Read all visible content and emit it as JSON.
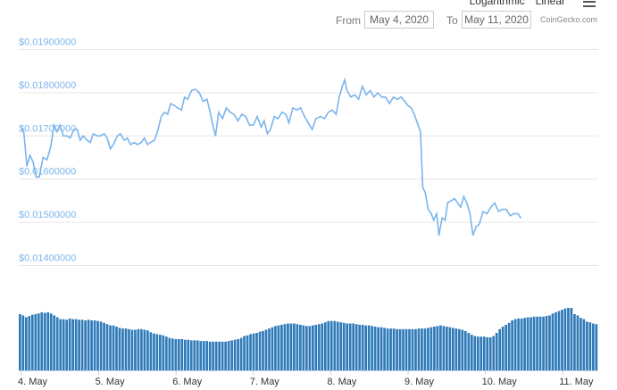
{
  "controls": {
    "scale_options": [
      "Logarithmic",
      "Linear"
    ],
    "from_label": "From",
    "from_value": "May 4, 2020",
    "to_label": "To",
    "to_value": "May 11, 2020",
    "credit": "CoinGecko.com"
  },
  "chart_data": {
    "type": "line",
    "title": "",
    "xlabel": "",
    "ylabel": "",
    "x_ticks": [
      "4. May",
      "5. May",
      "6. May",
      "7. May",
      "8. May",
      "9. May",
      "10. May",
      "11. May"
    ],
    "y_ticks": [
      "$0.01400000",
      "$0.01500000",
      "$0.01600000",
      "$0.01700000",
      "$0.01800000",
      "$0.01900000"
    ],
    "y_tick_values": [
      0.014,
      0.015,
      0.016,
      0.017,
      0.018,
      0.019
    ],
    "ylim": [
      0.0137,
      0.0193
    ],
    "x_range_days": [
      4.0,
      11.72
    ],
    "grid": true,
    "price_series": {
      "name": "Price",
      "color": "#7cb5ec",
      "points": [
        [
          4.0,
          0.0172
        ],
        [
          4.03,
          0.0171
        ],
        [
          4.07,
          0.0163
        ],
        [
          4.11,
          0.01655
        ],
        [
          4.15,
          0.0164
        ],
        [
          4.19,
          0.01605
        ],
        [
          4.23,
          0.01605
        ],
        [
          4.28,
          0.0165
        ],
        [
          4.33,
          0.01645
        ],
        [
          4.38,
          0.01675
        ],
        [
          4.42,
          0.01725
        ],
        [
          4.46,
          0.0171
        ],
        [
          4.5,
          0.01725
        ],
        [
          4.54,
          0.017
        ],
        [
          4.59,
          0.017
        ],
        [
          4.63,
          0.01695
        ],
        [
          4.68,
          0.01715
        ],
        [
          4.72,
          0.01715
        ],
        [
          4.76,
          0.0169
        ],
        [
          4.8,
          0.017
        ],
        [
          4.85,
          0.0169
        ],
        [
          4.89,
          0.01685
        ],
        [
          4.93,
          0.01705
        ],
        [
          4.98,
          0.017
        ],
        [
          5.02,
          0.017
        ],
        [
          5.07,
          0.01705
        ],
        [
          5.11,
          0.01695
        ],
        [
          5.15,
          0.0167
        ],
        [
          5.19,
          0.0168
        ],
        [
          5.24,
          0.017
        ],
        [
          5.28,
          0.01705
        ],
        [
          5.33,
          0.0169
        ],
        [
          5.37,
          0.01695
        ],
        [
          5.41,
          0.0168
        ],
        [
          5.46,
          0.01685
        ],
        [
          5.5,
          0.0168
        ],
        [
          5.55,
          0.01685
        ],
        [
          5.59,
          0.01695
        ],
        [
          5.63,
          0.0168
        ],
        [
          5.67,
          0.01685
        ],
        [
          5.72,
          0.0169
        ],
        [
          5.76,
          0.0171
        ],
        [
          5.81,
          0.01745
        ],
        [
          5.85,
          0.01755
        ],
        [
          5.89,
          0.0175
        ],
        [
          5.93,
          0.01775
        ],
        [
          5.98,
          0.0177
        ],
        [
          6.02,
          0.01765
        ],
        [
          6.07,
          0.0176
        ],
        [
          6.11,
          0.0179
        ],
        [
          6.15,
          0.01785
        ],
        [
          6.2,
          0.01805
        ],
        [
          6.25,
          0.01808
        ],
        [
          6.3,
          0.018
        ],
        [
          6.35,
          0.0178
        ],
        [
          6.4,
          0.01785
        ],
        [
          6.44,
          0.01755
        ],
        [
          6.48,
          0.0172
        ],
        [
          6.51,
          0.017
        ],
        [
          6.55,
          0.01755
        ],
        [
          6.6,
          0.0174
        ],
        [
          6.65,
          0.01765
        ],
        [
          6.7,
          0.01755
        ],
        [
          6.75,
          0.0175
        ],
        [
          6.8,
          0.01735
        ],
        [
          6.85,
          0.0175
        ],
        [
          6.9,
          0.01745
        ],
        [
          6.95,
          0.01725
        ],
        [
          7.0,
          0.01725
        ],
        [
          7.05,
          0.01745
        ],
        [
          7.1,
          0.0172
        ],
        [
          7.14,
          0.01735
        ],
        [
          7.18,
          0.01705
        ],
        [
          7.22,
          0.01715
        ],
        [
          7.27,
          0.01745
        ],
        [
          7.32,
          0.0174
        ],
        [
          7.37,
          0.01755
        ],
        [
          7.42,
          0.0175
        ],
        [
          7.46,
          0.0173
        ],
        [
          7.51,
          0.01765
        ],
        [
          7.56,
          0.0176
        ],
        [
          7.61,
          0.01765
        ],
        [
          7.66,
          0.01745
        ],
        [
          7.71,
          0.0173
        ],
        [
          7.76,
          0.01715
        ],
        [
          7.81,
          0.0174
        ],
        [
          7.87,
          0.01745
        ],
        [
          7.92,
          0.0174
        ],
        [
          7.97,
          0.01755
        ],
        [
          8.02,
          0.0176
        ],
        [
          8.07,
          0.0175
        ],
        [
          8.11,
          0.0179
        ],
        [
          8.15,
          0.01815
        ],
        [
          8.18,
          0.0183
        ],
        [
          8.21,
          0.01805
        ],
        [
          8.26,
          0.0179
        ],
        [
          8.31,
          0.01795
        ],
        [
          8.36,
          0.01785
        ],
        [
          8.41,
          0.01815
        ],
        [
          8.46,
          0.01795
        ],
        [
          8.51,
          0.01805
        ],
        [
          8.56,
          0.0179
        ],
        [
          8.61,
          0.018
        ],
        [
          8.66,
          0.0179
        ],
        [
          8.71,
          0.0179
        ],
        [
          8.76,
          0.01775
        ],
        [
          8.81,
          0.0179
        ],
        [
          8.86,
          0.01785
        ],
        [
          8.91,
          0.0179
        ],
        [
          8.96,
          0.0178
        ],
        [
          9.0,
          0.0177
        ],
        [
          9.04,
          0.01765
        ],
        [
          9.08,
          0.0175
        ],
        [
          9.12,
          0.0173
        ],
        [
          9.16,
          0.0171
        ],
        [
          9.19,
          0.0158
        ],
        [
          9.22,
          0.0157
        ],
        [
          9.26,
          0.0153
        ],
        [
          9.3,
          0.0152
        ],
        [
          9.33,
          0.01505
        ],
        [
          9.37,
          0.0152
        ],
        [
          9.4,
          0.0147
        ],
        [
          9.44,
          0.0151
        ],
        [
          9.48,
          0.01505
        ],
        [
          9.51,
          0.01545
        ],
        [
          9.56,
          0.0155
        ],
        [
          9.6,
          0.01555
        ],
        [
          9.64,
          0.01545
        ],
        [
          9.68,
          0.01535
        ],
        [
          9.72,
          0.0156
        ],
        [
          9.76,
          0.01545
        ],
        [
          9.8,
          0.0152
        ],
        [
          9.84,
          0.0147
        ],
        [
          9.88,
          0.0149
        ],
        [
          9.92,
          0.01495
        ],
        [
          9.97,
          0.01525
        ],
        [
          10.02,
          0.0152
        ],
        [
          10.07,
          0.01535
        ],
        [
          10.12,
          0.01545
        ],
        [
          10.17,
          0.01525
        ],
        [
          10.22,
          0.0153
        ],
        [
          10.27,
          0.0153
        ],
        [
          10.32,
          0.01515
        ],
        [
          10.37,
          0.0152
        ],
        [
          10.42,
          0.0152
        ],
        [
          10.46,
          0.0151
        ]
      ]
    },
    "volume_series": {
      "name": "Volume",
      "color": "#2f7ab9",
      "values": [
        90,
        88,
        85,
        87,
        89,
        90,
        91,
        93,
        92,
        93,
        91,
        88,
        85,
        82,
        82,
        81,
        83,
        82,
        82,
        81,
        81,
        80,
        81,
        80,
        80,
        79,
        78,
        76,
        74,
        72,
        72,
        70,
        68,
        67,
        67,
        66,
        65,
        65,
        66,
        66,
        65,
        64,
        61,
        59,
        58,
        57,
        56,
        54,
        52,
        51,
        50,
        50,
        50,
        49,
        49,
        48,
        48,
        48,
        47,
        47,
        47,
        46,
        46,
        46,
        46,
        46,
        46,
        47,
        48,
        49,
        50,
        52,
        55,
        56,
        58,
        59,
        60,
        62,
        63,
        65,
        67,
        69,
        71,
        72,
        73,
        74,
        75,
        75,
        75,
        74,
        73,
        72,
        71,
        71,
        72,
        73,
        74,
        75,
        77,
        79,
        79,
        79,
        78,
        77,
        76,
        75,
        75,
        75,
        74,
        73,
        73,
        72,
        72,
        71,
        70,
        69,
        69,
        68,
        67,
        67,
        67,
        66,
        66,
        66,
        66,
        66,
        66,
        66,
        67,
        67,
        67,
        68,
        69,
        70,
        71,
        72,
        71,
        70,
        69,
        68,
        67,
        66,
        65,
        63,
        60,
        57,
        55,
        54,
        54,
        54,
        53,
        53,
        55,
        60,
        66,
        70,
        73,
        76,
        80,
        82,
        83,
        83,
        84,
        85,
        85,
        86,
        86,
        86,
        86,
        87,
        88,
        91,
        93,
        95,
        97,
        99,
        100,
        100,
        90,
        88,
        84,
        82,
        78,
        77,
        75,
        74
      ]
    }
  }
}
